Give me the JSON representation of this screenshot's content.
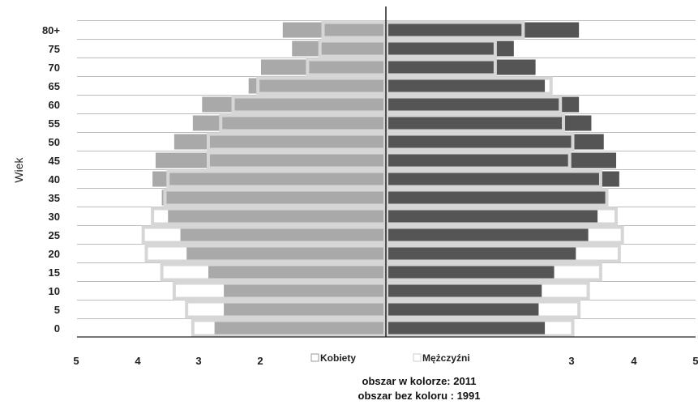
{
  "chart_data": {
    "type": "bar",
    "orientation": "horizontal",
    "ylabel": "Wiek",
    "categories": [
      "0",
      "5",
      "10",
      "15",
      "20",
      "25",
      "30",
      "35",
      "40",
      "45",
      "50",
      "55",
      "60",
      "65",
      "70",
      "75",
      "80+"
    ],
    "x_ticks_left": [
      "5",
      "4",
      "3",
      "2"
    ],
    "x_ticks_right": [
      "3",
      "4",
      "5"
    ],
    "xlim": [
      -5,
      5
    ],
    "grid": true,
    "legend": [
      "Kobiety",
      "Mężczyźni"
    ],
    "legend_position": "bottom-center",
    "series": [
      {
        "name": "Kobiety",
        "period": "2011",
        "side": "left",
        "color": "#a9a9a9",
        "values": [
          2.75,
          2.6,
          2.6,
          2.85,
          3.2,
          3.3,
          3.5,
          3.6,
          3.75,
          3.7,
          3.4,
          3.1,
          2.95,
          2.2,
          2.0,
          1.5,
          1.65
        ]
      },
      {
        "name": "Kobiety",
        "period": "1991",
        "side": "left",
        "outline": true,
        "values": [
          3.1,
          3.2,
          3.4,
          3.6,
          3.85,
          3.9,
          3.75,
          3.55,
          3.5,
          2.85,
          2.85,
          2.65,
          2.45,
          2.05,
          1.25,
          1.05,
          1.0
        ]
      },
      {
        "name": "Mężczyźni",
        "period": "2011",
        "side": "right",
        "color": "#555555",
        "values": [
          2.55,
          2.45,
          2.5,
          2.7,
          3.05,
          3.25,
          3.4,
          3.55,
          3.75,
          3.7,
          3.5,
          3.3,
          3.1,
          2.55,
          2.4,
          2.05,
          3.1
        ]
      },
      {
        "name": "Mężczyźni",
        "period": "1991",
        "side": "right",
        "outline": true,
        "values": [
          3.0,
          3.1,
          3.25,
          3.45,
          3.75,
          3.8,
          3.7,
          3.55,
          3.45,
          2.95,
          3.0,
          2.85,
          2.8,
          2.65,
          1.75,
          1.75,
          2.2
        ]
      }
    ],
    "notes": [
      "obszar w kolorze: 2011",
      "obszar bez koloru : 1991"
    ]
  },
  "colors": {
    "women_fill": "#a9a9a9",
    "men_fill": "#555555",
    "outline_stroke": "#d6d6d6",
    "axis": "#222222",
    "grid": "#bcbcbc"
  }
}
